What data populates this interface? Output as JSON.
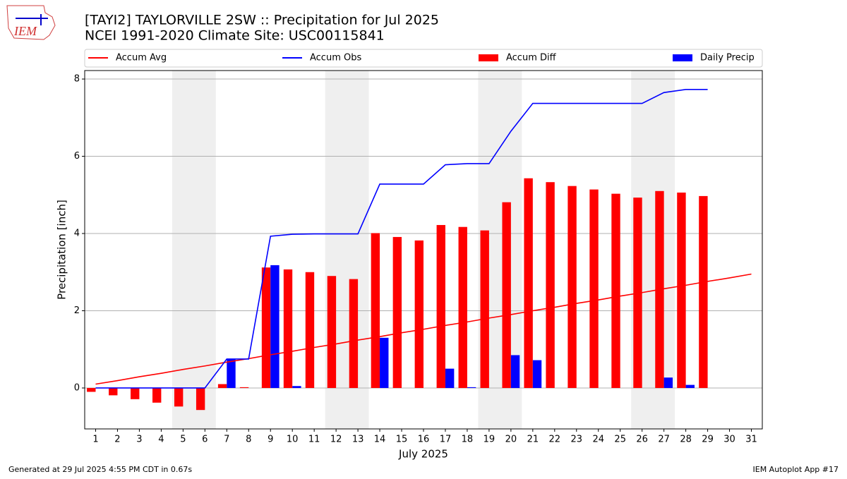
{
  "chart_data": {
    "type": "combo",
    "title": "[TAYI2] TAYLORVILLE 2SW :: Precipitation for Jul 2025",
    "subtitle": "NCEI 1991-2020 Climate Site: USC00115841",
    "ylabel": "Precipitation [inch]",
    "xlabel": "July 2025",
    "footer_left": "Generated at 29 Jul 2025 4:55 PM CDT in 0.67s",
    "footer_right": "IEM Autoplot App #17",
    "logo_text": "IEM",
    "x": [
      1,
      2,
      3,
      4,
      5,
      6,
      7,
      8,
      9,
      10,
      11,
      12,
      13,
      14,
      15,
      16,
      17,
      18,
      19,
      20,
      21,
      22,
      23,
      24,
      25,
      26,
      27,
      28,
      29,
      30,
      31
    ],
    "xlim": [
      0.5,
      31.5
    ],
    "xticks": [
      1,
      2,
      3,
      4,
      5,
      6,
      7,
      8,
      9,
      10,
      11,
      12,
      13,
      14,
      15,
      16,
      17,
      18,
      19,
      20,
      21,
      22,
      23,
      24,
      25,
      26,
      27,
      28,
      29,
      30,
      31
    ],
    "ylim": [
      -1.06,
      8.22
    ],
    "yticks": [
      0,
      2,
      4,
      6,
      8
    ],
    "grid": true,
    "shaded_spans": [
      [
        4.5,
        6.5
      ],
      [
        11.5,
        13.5
      ],
      [
        18.5,
        20.5
      ],
      [
        25.5,
        27.5
      ]
    ],
    "series": [
      {
        "name": "Accum Avg",
        "kind": "line",
        "color": "#ff0000",
        "values": [
          0.1,
          0.19,
          0.29,
          0.38,
          0.48,
          0.57,
          0.67,
          0.76,
          0.86,
          0.95,
          1.05,
          1.14,
          1.24,
          1.33,
          1.43,
          1.52,
          1.62,
          1.71,
          1.81,
          1.9,
          2.0,
          2.09,
          2.19,
          2.28,
          2.38,
          2.47,
          2.57,
          2.66,
          2.76,
          2.85,
          2.95
        ]
      },
      {
        "name": "Accum Obs",
        "kind": "line",
        "color": "#0000ff",
        "values": [
          0,
          0,
          0,
          0,
          0,
          0,
          0.75,
          0.75,
          3.93,
          3.98,
          3.99,
          3.99,
          3.99,
          5.28,
          5.28,
          5.28,
          5.78,
          5.81,
          5.81,
          6.65,
          7.37,
          7.37,
          7.37,
          7.37,
          7.37,
          7.37,
          7.65,
          7.73,
          7.73,
          null,
          null
        ]
      },
      {
        "name": "Accum Diff",
        "kind": "bar",
        "offset": -1,
        "color": "#ff0000",
        "values": [
          -0.1,
          -0.19,
          -0.29,
          -0.38,
          -0.48,
          -0.57,
          0.1,
          0.02,
          3.12,
          3.07,
          3.0,
          2.9,
          2.82,
          4.01,
          3.91,
          3.82,
          4.22,
          4.17,
          4.08,
          4.81,
          5.43,
          5.33,
          5.23,
          5.14,
          5.03,
          4.93,
          5.1,
          5.06,
          4.97,
          null,
          null
        ]
      },
      {
        "name": "Daily Precip",
        "kind": "bar",
        "offset": 1,
        "color": "#0000ff",
        "values": [
          0,
          0,
          0,
          0,
          0,
          0,
          0.75,
          0,
          3.18,
          0.05,
          0,
          0,
          0,
          1.3,
          0,
          0,
          0.5,
          0.02,
          0,
          0.85,
          0.72,
          0,
          0,
          0,
          0,
          0,
          0.27,
          0.08,
          0,
          null,
          null
        ]
      }
    ]
  }
}
